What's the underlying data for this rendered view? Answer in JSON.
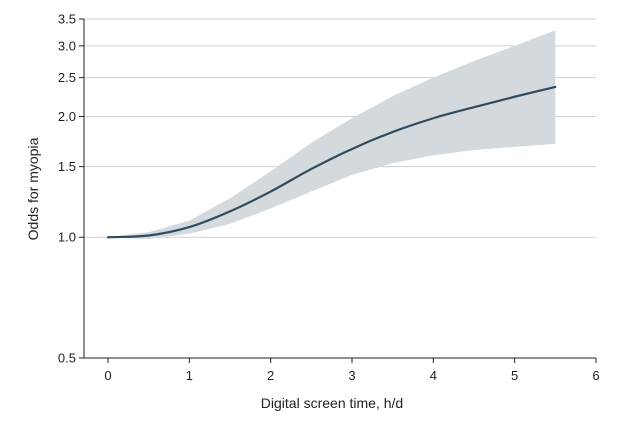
{
  "chart_data": {
    "type": "line",
    "title": "",
    "xlabel": "Digital screen time, h/d",
    "ylabel": "Odds for myopia",
    "xlim": [
      0,
      6
    ],
    "ylim": [
      0.5,
      3.5
    ],
    "y_scale": "log",
    "grid": "horizontal",
    "x_ticks": [
      0,
      1,
      2,
      3,
      4,
      5,
      6
    ],
    "y_ticks": [
      {
        "value": 0.5,
        "label": "0.5"
      },
      {
        "value": 1.0,
        "label": "1.0"
      },
      {
        "value": 1.5,
        "label": "1.5"
      },
      {
        "value": 2.0,
        "label": "2.0"
      },
      {
        "value": 2.5,
        "label": "2.5"
      },
      {
        "value": 3.0,
        "label": "3.0"
      },
      {
        "value": 3.5,
        "label": "3.5"
      }
    ],
    "series": [
      {
        "line_color": "#2f4b5e",
        "band_color": "#d4d9dd",
        "x": [
          0,
          0.5,
          1.0,
          1.5,
          2.0,
          2.5,
          3.0,
          3.5,
          4.0,
          4.5,
          5.0,
          5.5
        ],
        "y": [
          1.0,
          1.01,
          1.06,
          1.16,
          1.3,
          1.48,
          1.66,
          1.83,
          1.98,
          2.11,
          2.24,
          2.37
        ],
        "ci_lower": [
          1.0,
          0.99,
          1.02,
          1.08,
          1.18,
          1.3,
          1.43,
          1.53,
          1.6,
          1.65,
          1.68,
          1.71
        ],
        "ci_upper": [
          1.0,
          1.03,
          1.1,
          1.25,
          1.46,
          1.72,
          1.98,
          2.25,
          2.5,
          2.75,
          3.0,
          3.28
        ]
      }
    ]
  }
}
